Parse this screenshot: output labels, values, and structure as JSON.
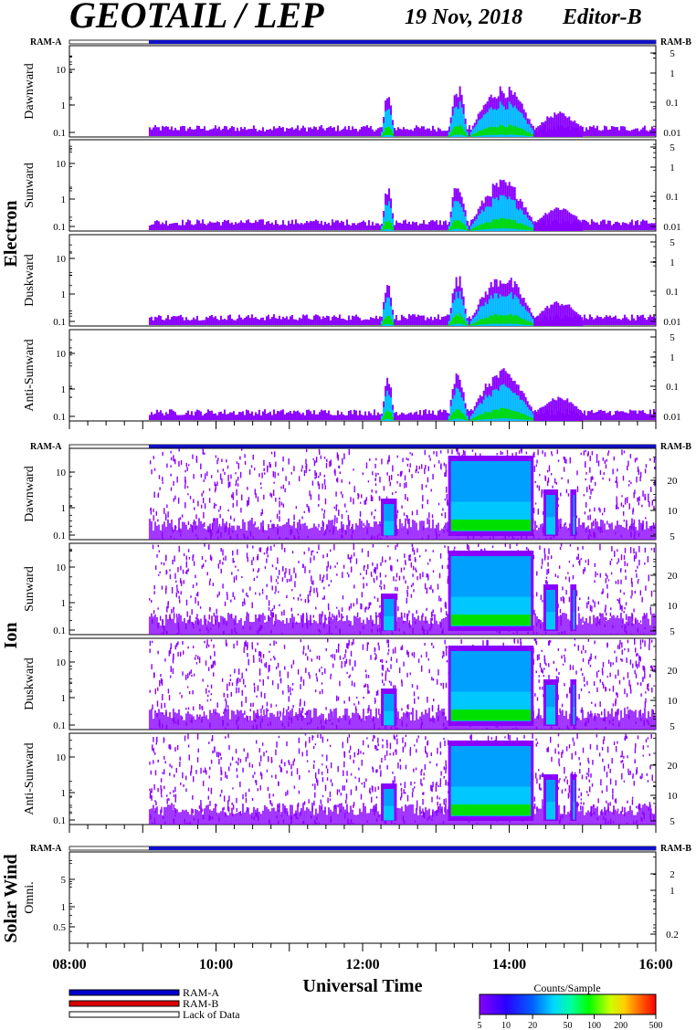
{
  "header": {
    "title": "GEOTAIL / LEP",
    "date": "19 Nov, 2018",
    "editor": "Editor-B"
  },
  "status_bar_labels": {
    "left": "RAM-A",
    "right": "RAM-B"
  },
  "groups": [
    {
      "name": "Electron",
      "panels": [
        {
          "name": "Dawnward",
          "ticks_left": [
            "10",
            "1",
            "0.1"
          ],
          "ticks_right": [
            "5",
            "1",
            "0.1",
            "0.01"
          ]
        },
        {
          "name": "Sunward",
          "ticks_left": [
            "10",
            "1",
            "0.1"
          ],
          "ticks_right": [
            "5",
            "1",
            "0.1",
            "0.01"
          ]
        },
        {
          "name": "Duskward",
          "ticks_left": [
            "10",
            "1",
            "0.1"
          ],
          "ticks_right": [
            "5",
            "1",
            "0.1",
            "0.01"
          ]
        },
        {
          "name": "Anti-Sunward",
          "ticks_left": [
            "10",
            "1",
            "0.1"
          ],
          "ticks_right": [
            "5",
            "1",
            "0.1",
            "0.01"
          ]
        }
      ]
    },
    {
      "name": "Ion",
      "panels": [
        {
          "name": "Dawnward",
          "ticks_left": [
            "10",
            "1",
            "0.1"
          ],
          "ticks_right": [
            "20",
            "10",
            "5"
          ]
        },
        {
          "name": "Sunward",
          "ticks_left": [
            "10",
            "1",
            "0.1"
          ],
          "ticks_right": [
            "20",
            "10",
            "5"
          ]
        },
        {
          "name": "Duskward",
          "ticks_left": [
            "10",
            "1",
            "0.1"
          ],
          "ticks_right": [
            "20",
            "10",
            "5"
          ]
        },
        {
          "name": "Anti-Sunward",
          "ticks_left": [
            "10",
            "1",
            "0.1"
          ],
          "ticks_right": [
            "20",
            "10",
            "5"
          ]
        }
      ]
    },
    {
      "name": "Solar Wind",
      "panels": [
        {
          "name": "Omni.",
          "ticks_left": [
            "5",
            "1",
            "0.5"
          ],
          "ticks_right": [
            "2",
            "1",
            "0.2"
          ]
        }
      ]
    }
  ],
  "time_axis": {
    "label": "Universal Time",
    "tick_labels": [
      "08:00",
      "10:00",
      "12:00",
      "14:00",
      "16:00"
    ]
  },
  "legend": {
    "items": [
      {
        "label": "RAM-A",
        "color": "#0000cc"
      },
      {
        "label": "RAM-B",
        "color": "#dd0000"
      },
      {
        "label": "Lack of Data",
        "color": "#ffffff"
      }
    ]
  },
  "colorbar": {
    "title": "Counts/Sample",
    "tick_labels": [
      "5",
      "10",
      "20",
      "50",
      "100",
      "200",
      "500"
    ]
  },
  "chart_data": {
    "type": "heatmap",
    "title": "GEOTAIL / LEP",
    "xlabel": "Universal Time",
    "x_range": [
      "08:00",
      "16:00"
    ],
    "data_coverage_start": "09:05",
    "colorbar_range": [
      5,
      500
    ],
    "colorbar_scale": "log",
    "colors": {
      "coverage_bar": "#1010c8",
      "low_counts": "#8a00ff",
      "mid_counts": "#00c8ff",
      "high_counts": "#00e000"
    },
    "electron_enhancements": [
      {
        "start": "12:15",
        "end": "12:25",
        "level": "medium"
      },
      {
        "start": "13:10",
        "end": "13:25",
        "level": "high"
      },
      {
        "start": "13:28",
        "end": "14:20",
        "level": "high"
      },
      {
        "start": "14:20",
        "end": "15:00",
        "level": "low"
      }
    ],
    "ion_enhancements": [
      {
        "start": "12:15",
        "end": "12:28",
        "level": "low"
      },
      {
        "start": "13:10",
        "end": "14:20",
        "level": "high"
      },
      {
        "start": "14:28",
        "end": "14:40",
        "level": "medium"
      },
      {
        "start": "14:50",
        "end": "14:55",
        "level": "medium"
      }
    ]
  }
}
